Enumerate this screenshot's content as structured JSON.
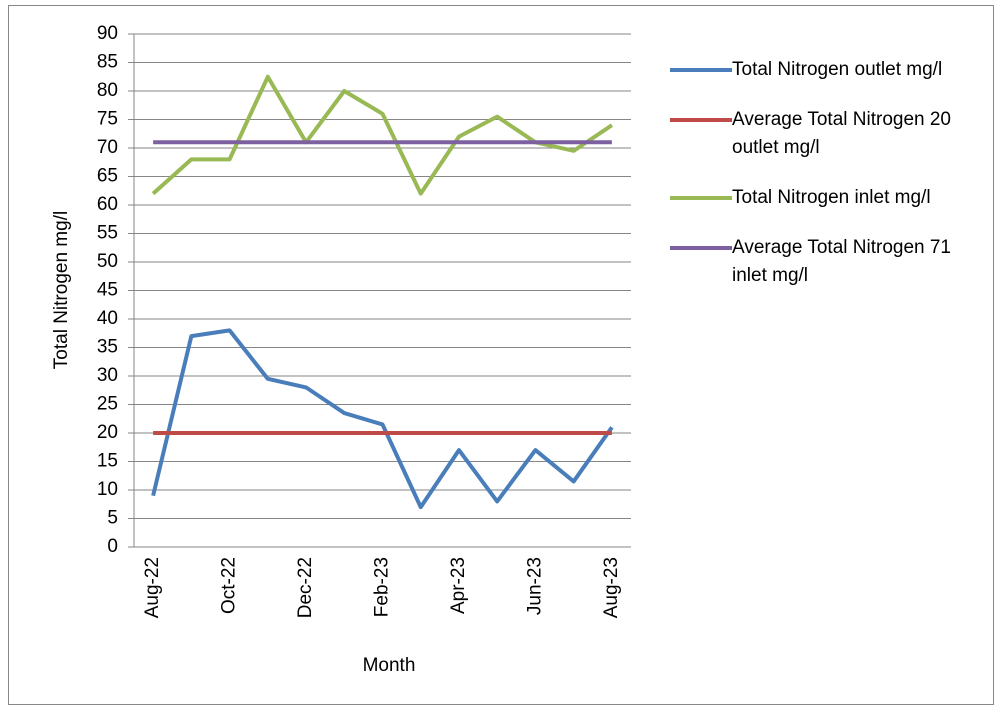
{
  "chart_data": {
    "type": "line",
    "x_label": "Month",
    "y_label": "Total Nitrogen mg/l",
    "categories": [
      "Aug-22",
      null,
      "Oct-22",
      null,
      "Dec-22",
      null,
      "Feb-23",
      null,
      "Apr-23",
      null,
      "Jun-23",
      null,
      "Aug-23"
    ],
    "series": [
      {
        "name": "Total Nitrogen outlet mg/l",
        "color": "#4a7ebb",
        "values": [
          9,
          37,
          38,
          29.5,
          28,
          23.5,
          21.5,
          7,
          17,
          8,
          17,
          11.5,
          21
        ]
      },
      {
        "name": "Average Total Nitrogen 20 outlet mg/l",
        "color": "#be4b48",
        "values": [
          20,
          20,
          20,
          20,
          20,
          20,
          20,
          20,
          20,
          20,
          20,
          20,
          20
        ]
      },
      {
        "name": "Total Nitrogen inlet mg/l",
        "color": "#98b954",
        "values": [
          62,
          68,
          68,
          82.5,
          71,
          80,
          76,
          62,
          72,
          75.5,
          71,
          69.5,
          74
        ]
      },
      {
        "name": "Average Total Nitrogen 71 inlet mg/l",
        "color": "#7d60a0",
        "values": [
          71,
          71,
          71,
          71,
          71,
          71,
          71,
          71,
          71,
          71,
          71,
          71,
          71
        ]
      }
    ],
    "ylim": [
      0,
      90
    ],
    "yticks": [
      0,
      5,
      10,
      15,
      20,
      25,
      30,
      35,
      40,
      45,
      50,
      55,
      60,
      65,
      70,
      75,
      80,
      85,
      90
    ],
    "grid": true,
    "legend": "right"
  }
}
